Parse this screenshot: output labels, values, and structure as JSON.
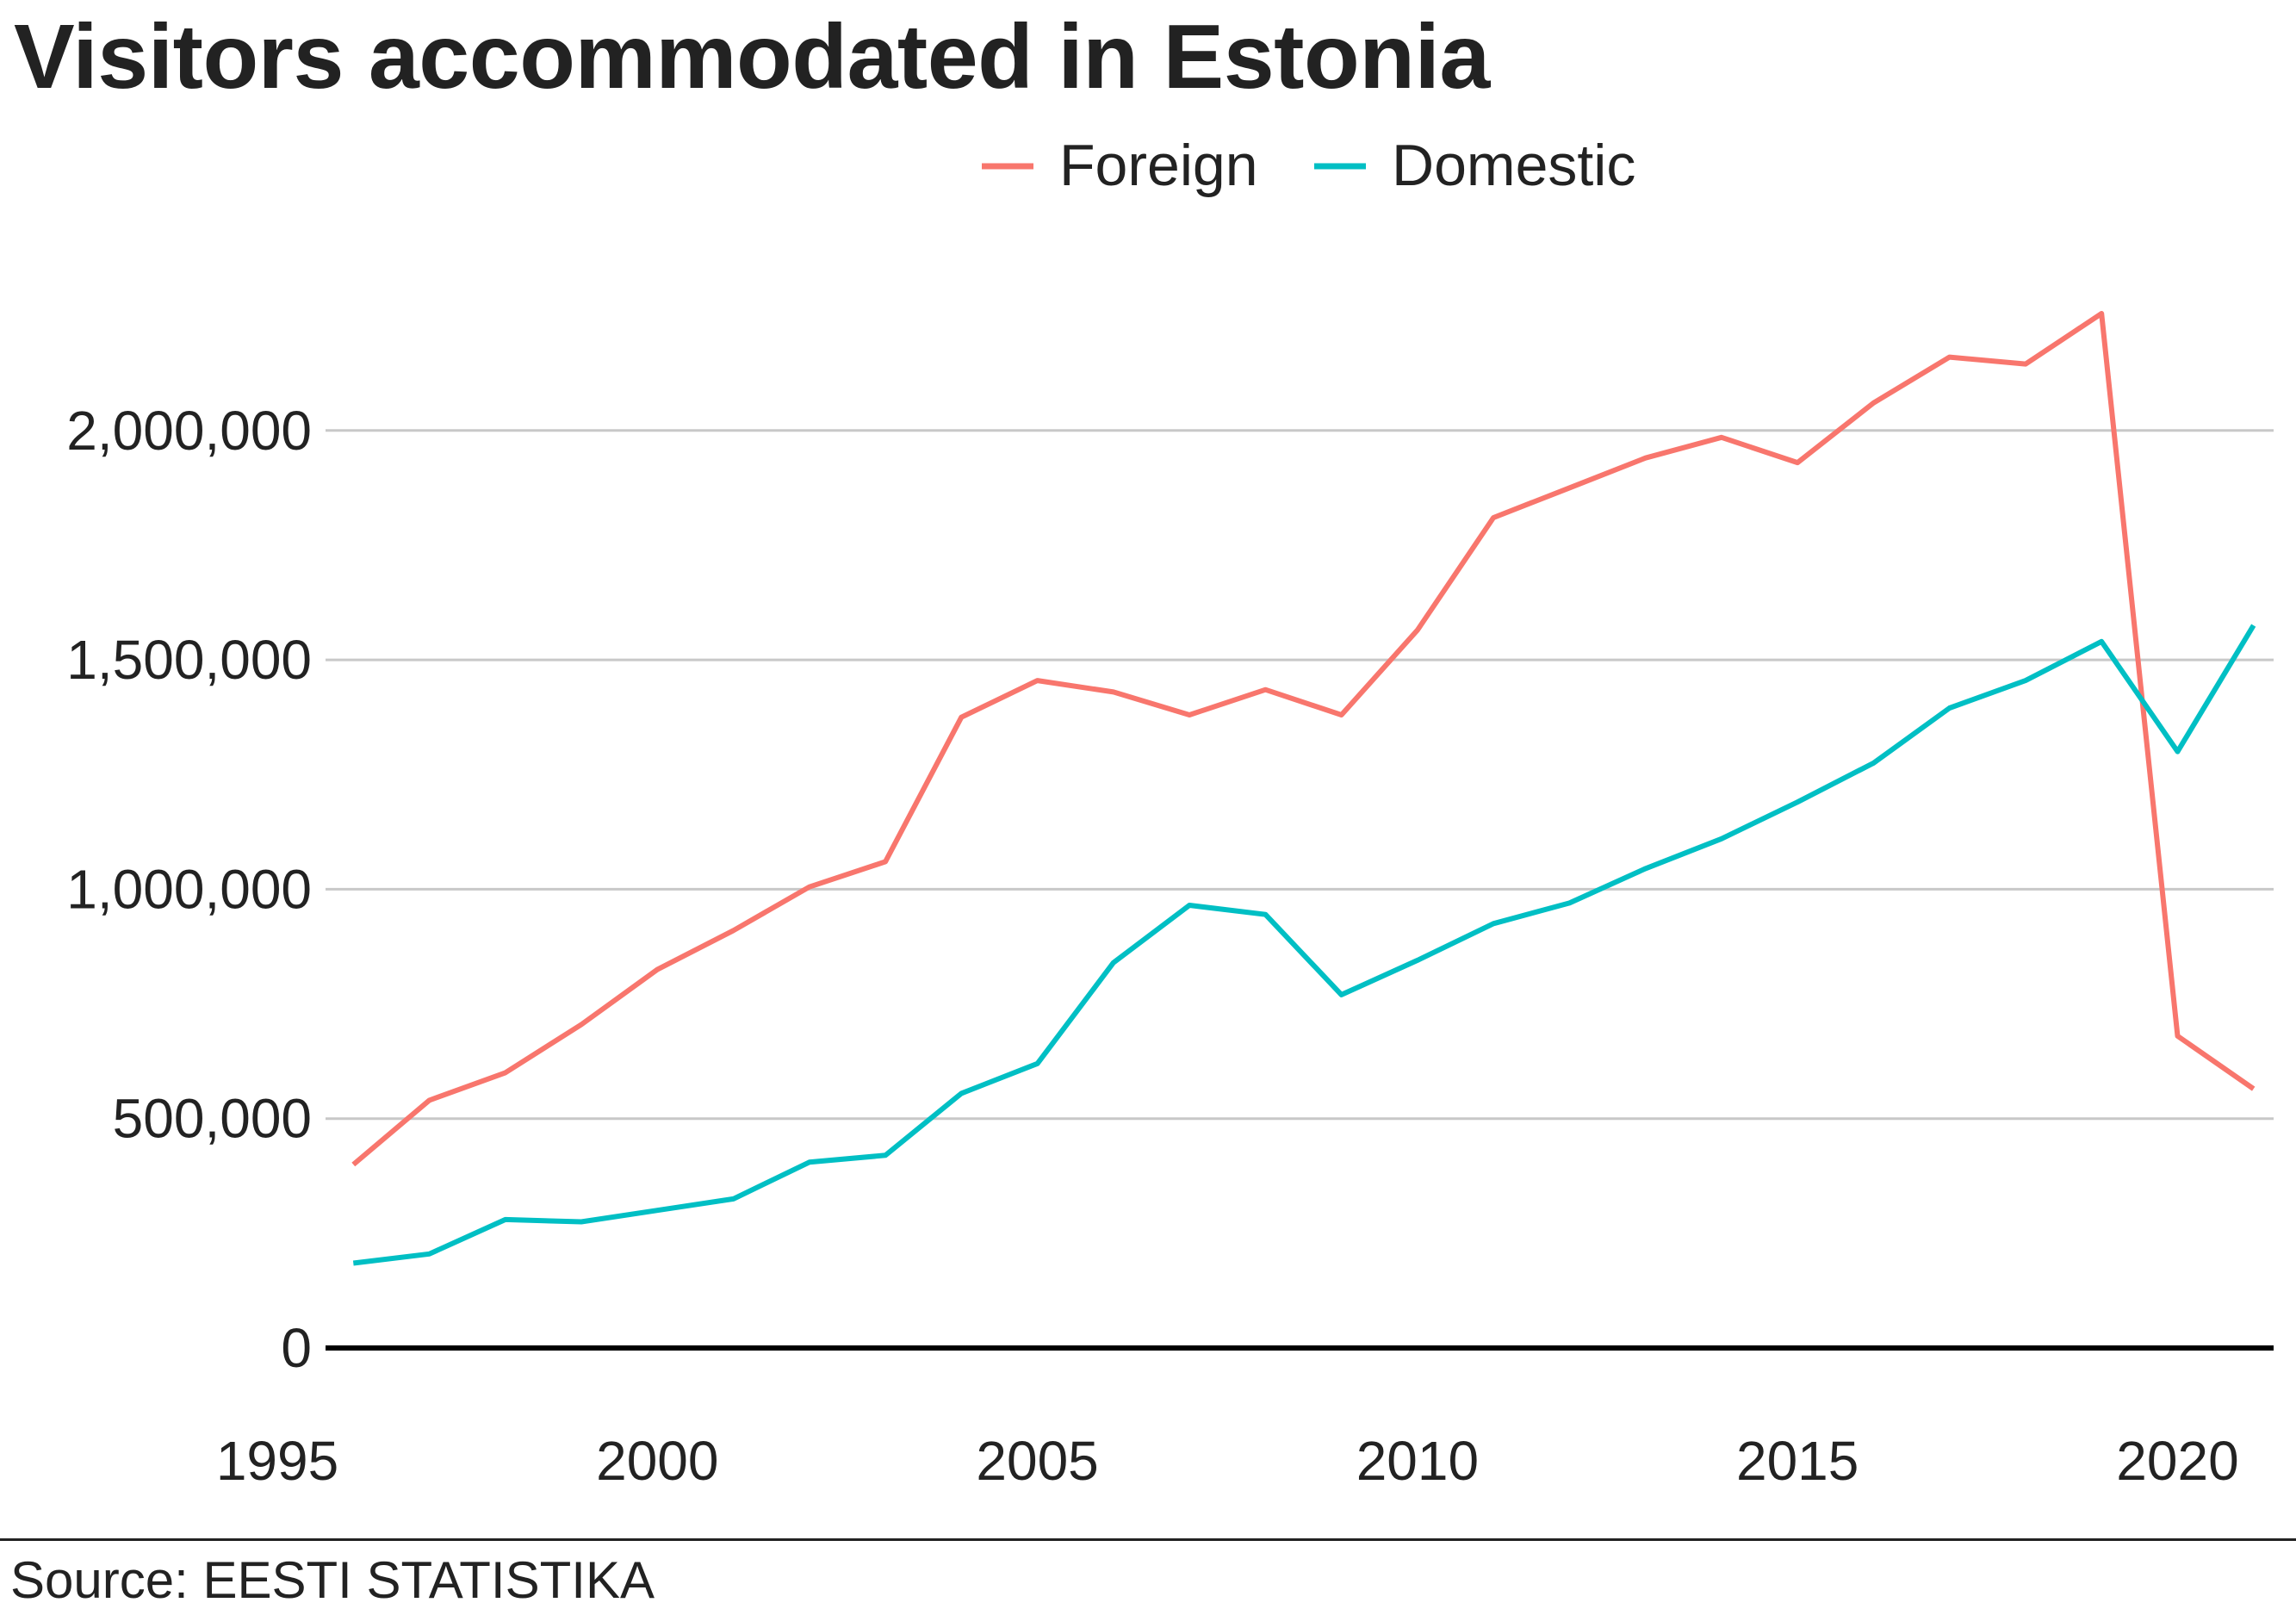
{
  "chart_data": {
    "type": "line",
    "title": "Visitors accommodated in Estonia",
    "xlabel": "",
    "ylabel": "",
    "source": "Source: EESTI STATISTIKA",
    "legend_position": "top-center",
    "grid": "horizontal",
    "x": [
      1996,
      1997,
      1998,
      1999,
      2000,
      2001,
      2002,
      2003,
      2004,
      2005,
      2006,
      2007,
      2008,
      2009,
      2010,
      2011,
      2012,
      2013,
      2014,
      2015,
      2016,
      2017,
      2018,
      2019,
      2020,
      2021
    ],
    "xticks": [
      "1995",
      "2000",
      "2005",
      "2010",
      "2015",
      "2020"
    ],
    "xtick_values": [
      1995,
      2000,
      2005,
      2010,
      2015,
      2020
    ],
    "yticks": [
      "0",
      "500,000",
      "1,000,000",
      "1,500,000",
      "2,000,000"
    ],
    "ytick_values": [
      0,
      500000,
      1000000,
      1500000,
      2000000
    ],
    "xlim": [
      1995,
      2022
    ],
    "ylim": [
      0,
      2300000
    ],
    "series": [
      {
        "name": "Foreign",
        "color": "#F8766D",
        "values": [
          400000,
          540000,
          600000,
          705000,
          825000,
          910000,
          1005000,
          1060000,
          1375000,
          1455000,
          1430000,
          1380000,
          1435000,
          1380000,
          1565000,
          1810000,
          1875000,
          1940000,
          1985000,
          1930000,
          2060000,
          2160000,
          2145000,
          2255000,
          680000,
          565000
        ]
      },
      {
        "name": "Domestic",
        "color": "#00BFC4",
        "values": [
          185000,
          205000,
          280000,
          275000,
          300000,
          325000,
          405000,
          420000,
          555000,
          620000,
          840000,
          965000,
          945000,
          770000,
          845000,
          925000,
          970000,
          1045000,
          1110000,
          1190000,
          1275000,
          1395000,
          1455000,
          1540000,
          1300000,
          1575000
        ]
      }
    ]
  }
}
